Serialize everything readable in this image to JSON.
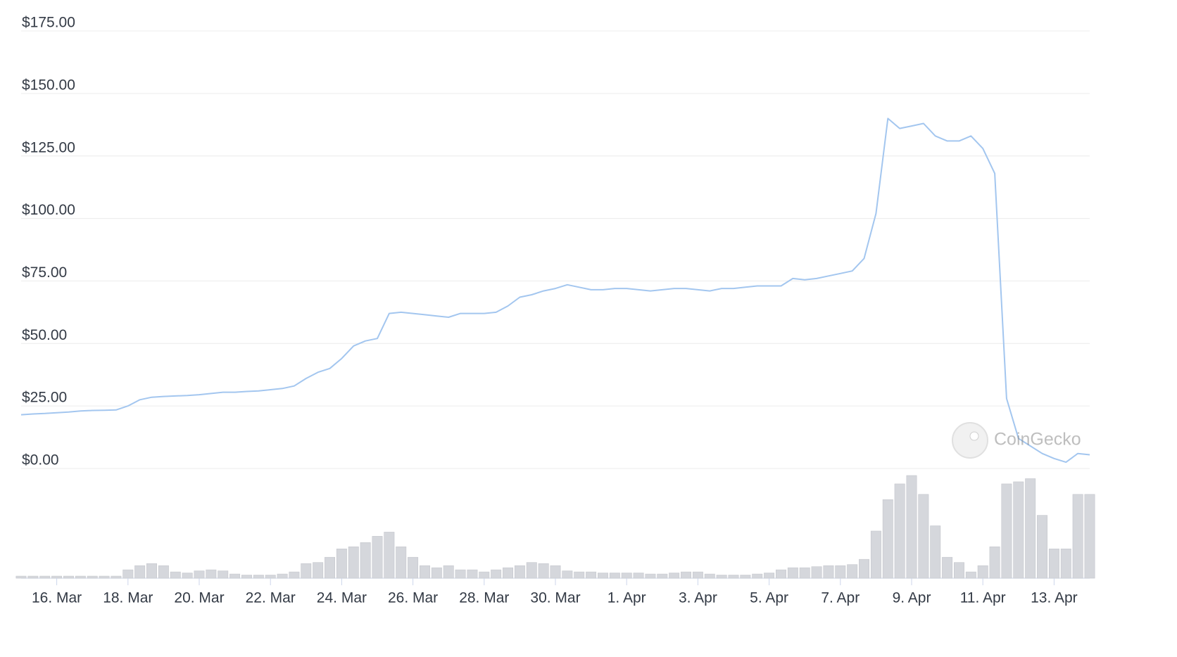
{
  "chart_data": {
    "type": "line",
    "watermark": "CoinGecko",
    "categories": [
      null,
      null,
      null,
      "16. Mar",
      null,
      null,
      null,
      null,
      null,
      "18. Mar",
      null,
      null,
      null,
      null,
      null,
      "20. Mar",
      null,
      null,
      null,
      null,
      null,
      "22. Mar",
      null,
      null,
      null,
      null,
      null,
      "24. Mar",
      null,
      null,
      null,
      null,
      null,
      "26. Mar",
      null,
      null,
      null,
      null,
      null,
      "28. Mar",
      null,
      null,
      null,
      null,
      null,
      "30. Mar",
      null,
      null,
      null,
      null,
      null,
      "1. Apr",
      null,
      null,
      null,
      null,
      null,
      "3. Apr",
      null,
      null,
      null,
      null,
      null,
      "5. Apr",
      null,
      null,
      null,
      null,
      null,
      "7. Apr",
      null,
      null,
      null,
      null,
      null,
      "9. Apr",
      null,
      null,
      null,
      null,
      null,
      "11. Apr",
      null,
      null,
      null,
      null,
      null,
      "13. Apr",
      null,
      null,
      null
    ],
    "series": [
      {
        "type": "line",
        "color": "#a3c6ef",
        "values": [
          21.5,
          21.8,
          22,
          22.3,
          22.6,
          23,
          23.2,
          23.3,
          23.4,
          25,
          27.5,
          28.5,
          28.8,
          29,
          29.2,
          29.5,
          30,
          30.5,
          30.5,
          30.8,
          31,
          31.5,
          32,
          33,
          36,
          38.5,
          40,
          44,
          49,
          51,
          52,
          62,
          62.5,
          62,
          61.5,
          61,
          60.5,
          62,
          62,
          62,
          62.5,
          65,
          68.5,
          69.5,
          71,
          72,
          73.5,
          72.5,
          71.5,
          71.5,
          72,
          72,
          71.5,
          71,
          71.5,
          72,
          72,
          71.5,
          71,
          72,
          72,
          72.5,
          73,
          73,
          73,
          76,
          75.5,
          76,
          77,
          78,
          79,
          84,
          102,
          140,
          136,
          137,
          138,
          133,
          131,
          131,
          133,
          128,
          118,
          28,
          12,
          9,
          6,
          4,
          2.5,
          6,
          5.5
        ]
      },
      {
        "type": "bar",
        "color": "#d5d7dc",
        "values": [
          2,
          2,
          2,
          2,
          2,
          2,
          2,
          2,
          2,
          8,
          12,
          14,
          12,
          6,
          5,
          7,
          8,
          7,
          4,
          3,
          3,
          3,
          4,
          6,
          14,
          15,
          20,
          28,
          30,
          34,
          40,
          44,
          30,
          20,
          12,
          10,
          12,
          8,
          8,
          6,
          8,
          10,
          12,
          15,
          14,
          12,
          7,
          6,
          6,
          5,
          5,
          5,
          5,
          4,
          4,
          5,
          6,
          6,
          4,
          3,
          3,
          3,
          4,
          5,
          8,
          10,
          10,
          11,
          12,
          12,
          13,
          18,
          45,
          75,
          90,
          98,
          80,
          50,
          20,
          15,
          6,
          12,
          30,
          90,
          92,
          95,
          60,
          28,
          28,
          80,
          80
        ]
      }
    ],
    "ylim": [
      0,
      175
    ],
    "yticks": [
      {
        "value": 0,
        "label": "$0.00"
      },
      {
        "value": 25,
        "label": "$25.00"
      },
      {
        "value": 50,
        "label": "$50.00"
      },
      {
        "value": 75,
        "label": "$75.00"
      },
      {
        "value": 100,
        "label": "$100.00"
      },
      {
        "value": 125,
        "label": "$125.00"
      },
      {
        "value": 150,
        "label": "$150.00"
      },
      {
        "value": 175,
        "label": "$175.00"
      }
    ],
    "grid": true
  }
}
